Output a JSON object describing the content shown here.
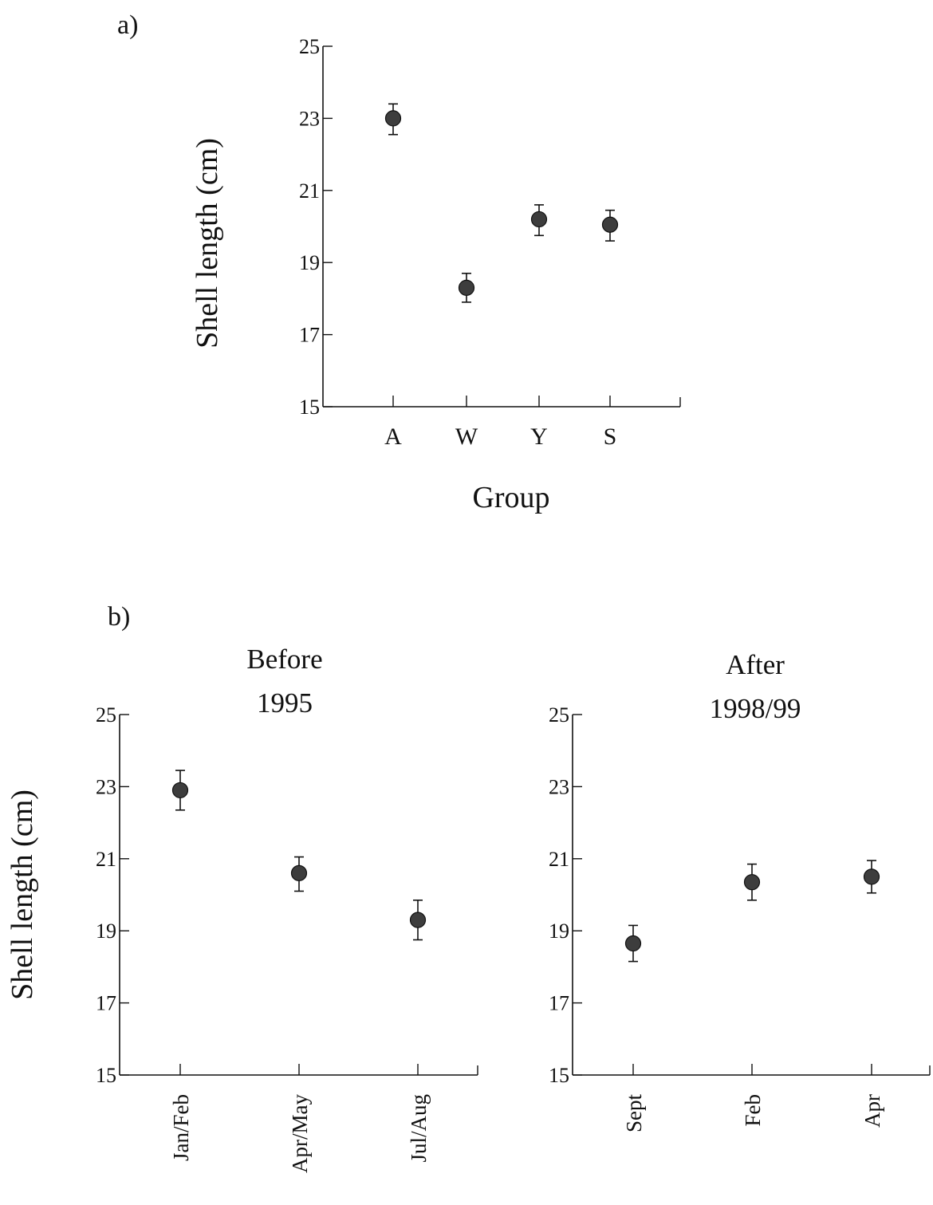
{
  "panel_a_label": "a)",
  "panel_b_label": "b)",
  "chart_data": [
    {
      "type": "scatter",
      "title": "",
      "xlabel": "Group",
      "ylabel": "Shell length (cm)",
      "ylim": [
        15,
        25
      ],
      "yticks": [
        15,
        17,
        19,
        21,
        23,
        25
      ],
      "categories": [
        "A",
        "W",
        "Y",
        "S"
      ],
      "values": [
        23.0,
        18.3,
        20.2,
        20.05
      ],
      "err_low": [
        22.55,
        17.9,
        19.75,
        19.6
      ],
      "err_high": [
        23.4,
        18.7,
        20.6,
        20.45
      ],
      "grid": false,
      "legend": "none"
    },
    {
      "type": "scatter",
      "title": [
        "Before",
        "1995"
      ],
      "xlabel": "",
      "ylabel": "Shell length (cm)",
      "ylim": [
        15,
        25
      ],
      "yticks": [
        15,
        17,
        19,
        21,
        23,
        25
      ],
      "categories": [
        "Jan/Feb",
        "Apr/May",
        "Jul/Aug"
      ],
      "values": [
        22.9,
        20.6,
        19.3
      ],
      "err_low": [
        22.35,
        20.1,
        18.75
      ],
      "err_high": [
        23.45,
        21.05,
        19.85
      ],
      "grid": false,
      "legend": "none"
    },
    {
      "type": "scatter",
      "title": [
        "After",
        "1998/99"
      ],
      "xlabel": "",
      "ylabel": "",
      "ylim": [
        15,
        25
      ],
      "yticks": [
        15,
        17,
        19,
        21,
        23,
        25
      ],
      "categories": [
        "Sept",
        "Feb",
        "Apr"
      ],
      "values": [
        18.65,
        20.35,
        20.5
      ],
      "err_low": [
        18.15,
        19.85,
        20.05
      ],
      "err_high": [
        19.15,
        20.85,
        20.95
      ],
      "grid": false,
      "legend": "none"
    }
  ]
}
